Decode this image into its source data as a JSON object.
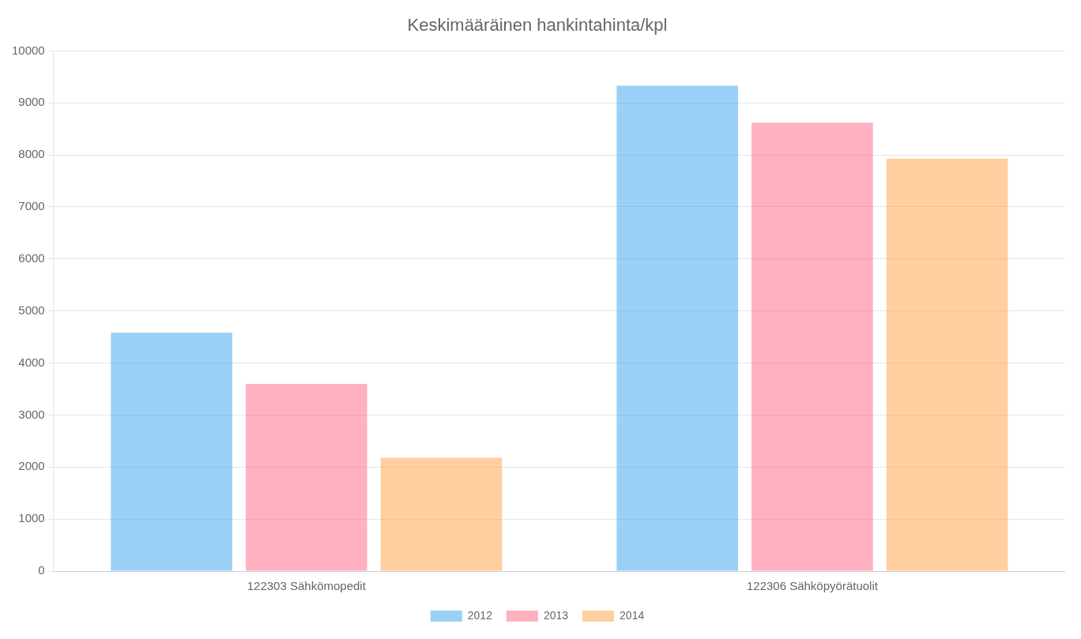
{
  "chart_data": {
    "type": "bar",
    "title": "Keskimääräinen hankintahinta/kpl",
    "categories": [
      "122303 Sähkömopedit",
      "122306 Sähköpyörätuolit"
    ],
    "series": [
      {
        "name": "2012",
        "values": [
          4580,
          9330
        ]
      },
      {
        "name": "2013",
        "values": [
          3600,
          8620
        ]
      },
      {
        "name": "2014",
        "values": [
          2180,
          7930
        ]
      }
    ],
    "ylim": [
      0,
      10000
    ],
    "yticks": [
      0,
      1000,
      2000,
      3000,
      4000,
      5000,
      6000,
      7000,
      8000,
      9000,
      10000
    ],
    "grid": true,
    "legend": "bottom"
  }
}
